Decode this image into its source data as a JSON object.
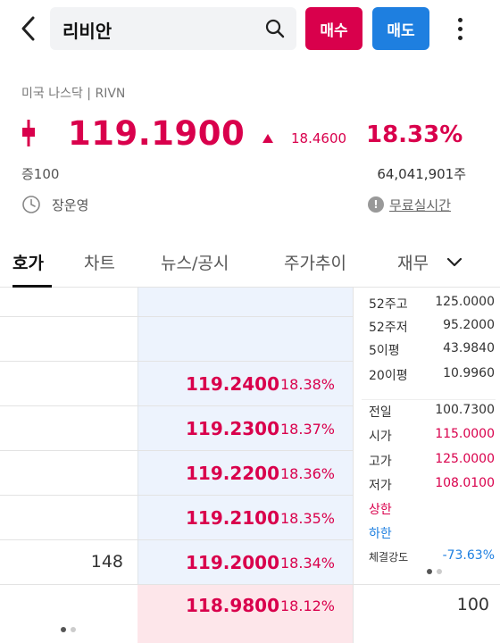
{
  "header": {
    "search_value": "리비안",
    "buy_label": "매수",
    "sell_label": "매도"
  },
  "quote": {
    "market": "미국 나스닥 | RIVN",
    "price": "119.1900",
    "change": "18.4600",
    "change_pct": "18.33%",
    "margin": "증100",
    "volume": "64,041,901주",
    "owner": "장운영",
    "realtime_label": "무료실시간",
    "info_glyph": "!",
    "accent_up": "#d9004c",
    "accent_down": "#1e7fe0"
  },
  "tabs": [
    {
      "label": "호가"
    },
    {
      "label": "차트"
    },
    {
      "label": "뉴스/공시"
    },
    {
      "label": "주가추이"
    },
    {
      "label": "재무"
    }
  ],
  "asks": [
    {
      "qty": "",
      "price": "119.2400",
      "pct": "18.38%"
    },
    {
      "qty": "",
      "price": "119.2300",
      "pct": "18.37%"
    },
    {
      "qty": "",
      "price": "119.2200",
      "pct": "18.36%"
    },
    {
      "qty": "",
      "price": "119.2100",
      "pct": "18.35%"
    },
    {
      "qty": "148",
      "price": "119.2000",
      "pct": "18.34%"
    }
  ],
  "bid": {
    "price": "118.9800",
    "pct": "18.12%",
    "qty": "100"
  },
  "stats": [
    {
      "label": "52주고",
      "value": "125.0000"
    },
    {
      "label": "52주저",
      "value": "95.2000"
    },
    {
      "label": "5이평",
      "value": "43.9840"
    },
    {
      "label": "20이평",
      "value": "10.9960"
    },
    {
      "label": "전일",
      "value": "100.7300"
    },
    {
      "label": "시가",
      "value": "115.0000"
    },
    {
      "label": "고가",
      "value": "125.0000"
    },
    {
      "label": "저가",
      "value": "108.0100"
    },
    {
      "label": "상한",
      "value": ""
    },
    {
      "label": "하한",
      "value": ""
    },
    {
      "label": "체결강도",
      "value": "-73.63%"
    }
  ]
}
